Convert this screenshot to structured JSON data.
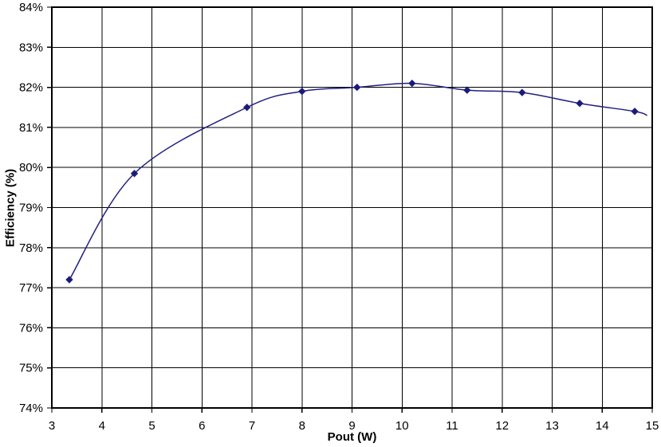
{
  "page": {
    "background": "#ffffff"
  },
  "chart_data": {
    "type": "line",
    "title": "",
    "xlabel": "Pout (W)",
    "ylabel": "Efficiency (%)",
    "xlim": [
      3,
      15
    ],
    "ylim": [
      74,
      84
    ],
    "x_ticks": [
      3,
      4,
      5,
      6,
      7,
      8,
      9,
      10,
      11,
      12,
      13,
      14,
      15
    ],
    "y_ticks": [
      74,
      75,
      76,
      77,
      78,
      79,
      80,
      81,
      82,
      83,
      84
    ],
    "y_tick_suffix": "%",
    "grid": true,
    "legend_position": "none",
    "colors": {
      "series_line": "#202080",
      "marker_fill": "#1a1a78",
      "gridline": "#000000",
      "frame": "#000000",
      "text": "#000000"
    },
    "series": [
      {
        "name": "Efficiency",
        "marker": "diamond",
        "smooth": true,
        "points": [
          {
            "x": 3.35,
            "y": 77.2,
            "marker": true
          },
          {
            "x": 4.65,
            "y": 79.85,
            "marker": true
          },
          {
            "x": 6.9,
            "y": 81.5,
            "marker": true
          },
          {
            "x": 8.0,
            "y": 81.9,
            "marker": true
          },
          {
            "x": 9.1,
            "y": 82.0,
            "marker": true
          },
          {
            "x": 10.2,
            "y": 82.1,
            "marker": true
          },
          {
            "x": 11.3,
            "y": 81.93,
            "marker": true
          },
          {
            "x": 12.4,
            "y": 81.87,
            "marker": true
          },
          {
            "x": 13.55,
            "y": 81.6,
            "marker": true
          },
          {
            "x": 14.65,
            "y": 81.4,
            "marker": true
          },
          {
            "x": 14.9,
            "y": 81.3,
            "marker": false
          }
        ]
      }
    ]
  }
}
